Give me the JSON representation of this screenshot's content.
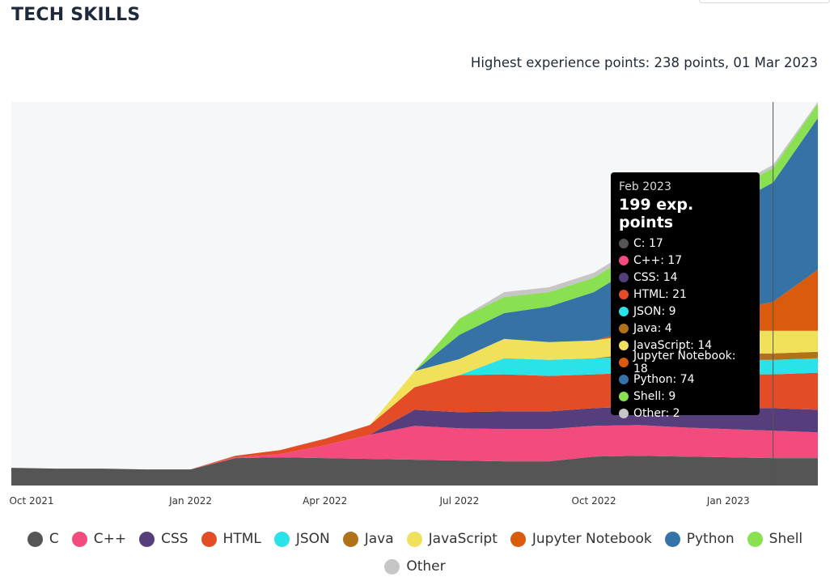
{
  "page": {
    "title": "TECH SKILLS",
    "highest_label": "Highest experience points: 238 points, 01 Mar 2023"
  },
  "tooltip": {
    "month": "Feb 2023",
    "total": "199 exp. points",
    "rows": [
      {
        "label": "C: 17",
        "color": "#555555"
      },
      {
        "label": "C++: 17",
        "color": "#f34b7d"
      },
      {
        "label": "CSS: 14",
        "color": "#563d7c"
      },
      {
        "label": "HTML: 21",
        "color": "#e34c26"
      },
      {
        "label": "JSON: 9",
        "color": "#29e3e8"
      },
      {
        "label": "Java: 4",
        "color": "#b07219"
      },
      {
        "label": "JavaScript: 14",
        "color": "#f1e05a"
      },
      {
        "label": "Jupyter Notebook: 18",
        "color": "#da5b0b"
      },
      {
        "label": "Python: 74",
        "color": "#3572a5"
      },
      {
        "label": "Shell: 9",
        "color": "#89e051"
      },
      {
        "label": "Other: 2",
        "color": "#c6c6c6"
      }
    ]
  },
  "chart_data": {
    "type": "area",
    "stacked": true,
    "title": "TECH SKILLS",
    "x": [
      "2021-09",
      "2021-10",
      "2021-11",
      "2021-12",
      "2022-01",
      "2022-02",
      "2022-03",
      "2022-04",
      "2022-05",
      "2022-06",
      "2022-07",
      "2022-08",
      "2022-09",
      "2022-10",
      "2022-11",
      "2022-12",
      "2023-01",
      "2023-02",
      "2023-03"
    ],
    "x_ticks": [
      "Oct 2021",
      "Jan 2022",
      "Apr 2022",
      "Jul 2022",
      "Oct 2022",
      "Jan 2023"
    ],
    "ylim": [
      0,
      238
    ],
    "grid": false,
    "legend_position": "bottom",
    "series": [
      {
        "name": "C",
        "color": "#555555",
        "values": [
          11,
          10.5,
          10.5,
          10,
          10,
          17,
          17.5,
          17,
          16.5,
          16,
          15.5,
          15,
          15,
          18,
          18.5,
          18,
          17.5,
          17,
          17
        ]
      },
      {
        "name": "C++",
        "color": "#f34b7d",
        "values": [
          0,
          0,
          0,
          0,
          0,
          0.5,
          2,
          8,
          15,
          21,
          20,
          20,
          20,
          19,
          19,
          18,
          17.5,
          17,
          16
        ]
      },
      {
        "name": "CSS",
        "color": "#563d7c",
        "values": [
          0,
          0,
          0,
          0,
          0,
          0,
          0,
          0,
          0,
          10,
          10,
          11,
          11,
          11,
          11.5,
          12,
          13,
          14,
          14
        ]
      },
      {
        "name": "HTML",
        "color": "#e34c26",
        "values": [
          0,
          0,
          0,
          0,
          0,
          1,
          2.5,
          4,
          6,
          14,
          23,
          23,
          22,
          21,
          21,
          21,
          21,
          21,
          23
        ]
      },
      {
        "name": "JSON",
        "color": "#29e3e8",
        "values": [
          0,
          0,
          0,
          0,
          0,
          0,
          0,
          0,
          0,
          0,
          0,
          10,
          10,
          10,
          10,
          9,
          9,
          9,
          9
        ]
      },
      {
        "name": "Java",
        "color": "#b07219",
        "values": [
          0,
          0,
          0,
          0,
          0,
          0,
          0,
          0,
          0,
          0,
          0,
          0,
          0,
          0,
          2,
          3,
          4,
          4,
          4
        ]
      },
      {
        "name": "JavaScript",
        "color": "#f1e05a",
        "values": [
          0,
          0,
          0,
          0,
          0,
          0,
          0,
          0,
          0,
          10,
          10,
          12,
          11,
          11,
          12,
          13,
          14,
          14,
          13
        ]
      },
      {
        "name": "Jupyter Notebook",
        "color": "#da5b0b",
        "values": [
          0,
          0,
          0,
          0,
          0,
          0,
          0,
          0,
          0,
          0,
          0,
          0,
          0,
          0,
          3,
          7,
          12,
          18,
          38
        ]
      },
      {
        "name": "Python",
        "color": "#3572a5",
        "values": [
          0,
          0,
          0,
          0,
          0,
          0,
          0,
          0,
          0,
          0,
          15,
          16,
          22,
          30,
          40,
          55,
          65,
          74,
          94
        ]
      },
      {
        "name": "Shell",
        "color": "#89e051",
        "values": [
          0,
          0,
          0,
          0,
          0,
          0,
          0,
          0,
          0,
          0,
          10,
          10,
          9,
          9,
          9,
          9,
          9,
          9,
          9
        ]
      },
      {
        "name": "Other",
        "color": "#c6c6c6",
        "values": [
          0,
          0,
          0,
          0,
          0,
          0,
          0,
          0,
          0,
          0,
          0,
          3,
          3,
          3,
          3,
          2,
          2,
          2,
          1
        ]
      }
    ],
    "highlight": {
      "x": "2023-02",
      "total": 199
    }
  },
  "legend": {
    "items": [
      {
        "name": "C",
        "color": "#555555"
      },
      {
        "name": "C++",
        "color": "#f34b7d"
      },
      {
        "name": "CSS",
        "color": "#563d7c"
      },
      {
        "name": "HTML",
        "color": "#e34c26"
      },
      {
        "name": "JSON",
        "color": "#29e3e8"
      },
      {
        "name": "Java",
        "color": "#b07219"
      },
      {
        "name": "JavaScript",
        "color": "#f1e05a"
      },
      {
        "name": "Jupyter Notebook",
        "color": "#da5b0b"
      },
      {
        "name": "Python",
        "color": "#3572a5"
      },
      {
        "name": "Shell",
        "color": "#89e051"
      },
      {
        "name": "Other",
        "color": "#c6c6c6"
      }
    ]
  }
}
